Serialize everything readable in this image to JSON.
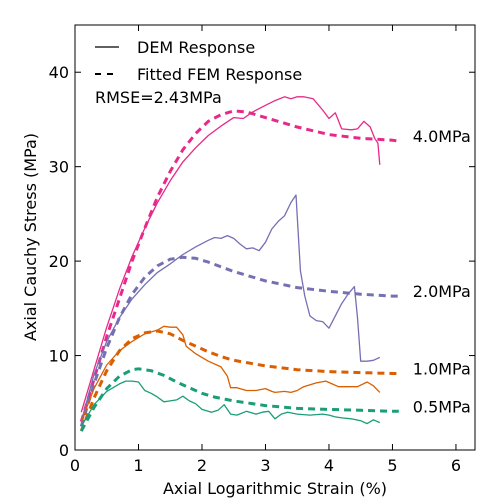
{
  "chart_data": {
    "type": "line",
    "title": "",
    "xlabel": "Axial Logarithmic Strain (%)",
    "ylabel": "Axial Cauchy Stress (MPa)",
    "xlim": [
      0,
      6.3
    ],
    "ylim": [
      0,
      45
    ],
    "x_ticks": [
      0,
      1,
      2,
      3,
      4,
      5,
      6
    ],
    "y_ticks": [
      0,
      10,
      20,
      30,
      40
    ],
    "grid": false,
    "legend": {
      "placement": "top-left",
      "entries": [
        {
          "label": "DEM Response",
          "style": "solid"
        },
        {
          "label": "Fitted FEM Response",
          "style": "dashed"
        }
      ]
    },
    "annotations": {
      "rmse": "RMSE=2.43MPa"
    },
    "series": [
      {
        "name": "4.0MPa",
        "color": "#e7298a",
        "dem": [
          [
            0.1,
            4
          ],
          [
            0.3,
            8.5
          ],
          [
            0.5,
            13
          ],
          [
            0.7,
            17
          ],
          [
            0.9,
            20.5
          ],
          [
            1.1,
            23.5
          ],
          [
            1.3,
            26.2
          ],
          [
            1.5,
            28.5
          ],
          [
            1.7,
            30.5
          ],
          [
            1.9,
            32
          ],
          [
            2.1,
            33.3
          ],
          [
            2.3,
            34.3
          ],
          [
            2.5,
            35.2
          ],
          [
            2.65,
            35.1
          ],
          [
            2.8,
            35.8
          ],
          [
            3.0,
            36.5
          ],
          [
            3.15,
            37
          ],
          [
            3.3,
            37.4
          ],
          [
            3.4,
            37.2
          ],
          [
            3.5,
            37.4
          ],
          [
            3.6,
            37.4
          ],
          [
            3.75,
            37.2
          ],
          [
            3.9,
            36
          ],
          [
            4.0,
            35.1
          ],
          [
            4.1,
            35.7
          ],
          [
            4.2,
            34
          ],
          [
            4.35,
            33.9
          ],
          [
            4.45,
            34
          ],
          [
            4.55,
            34.8
          ],
          [
            4.65,
            34.2
          ],
          [
            4.72,
            33
          ],
          [
            4.77,
            32.5
          ],
          [
            4.8,
            30.2
          ]
        ],
        "fem": [
          [
            0.1,
            3
          ],
          [
            0.3,
            7.5
          ],
          [
            0.5,
            12
          ],
          [
            0.7,
            16
          ],
          [
            0.9,
            20
          ],
          [
            1.1,
            23.5
          ],
          [
            1.3,
            26.8
          ],
          [
            1.5,
            29.5
          ],
          [
            1.7,
            31.8
          ],
          [
            1.9,
            33.5
          ],
          [
            2.1,
            34.8
          ],
          [
            2.3,
            35.5
          ],
          [
            2.5,
            35.9
          ],
          [
            2.7,
            35.8
          ],
          [
            3.0,
            35.2
          ],
          [
            3.5,
            34.2
          ],
          [
            4.0,
            33.4
          ],
          [
            4.5,
            33
          ],
          [
            5.0,
            32.8
          ],
          [
            5.1,
            32.7
          ]
        ]
      },
      {
        "name": "2.0MPa",
        "color": "#7570b3",
        "dem": [
          [
            0.1,
            3
          ],
          [
            0.3,
            8
          ],
          [
            0.5,
            11.5
          ],
          [
            0.7,
            14
          ],
          [
            0.9,
            16
          ],
          [
            1.1,
            17.5
          ],
          [
            1.3,
            18.8
          ],
          [
            1.5,
            19.7
          ],
          [
            1.7,
            20.7
          ],
          [
            1.9,
            21.5
          ],
          [
            2.1,
            22.2
          ],
          [
            2.2,
            22.5
          ],
          [
            2.3,
            22.4
          ],
          [
            2.4,
            22.7
          ],
          [
            2.5,
            22.4
          ],
          [
            2.6,
            21.8
          ],
          [
            2.7,
            21.3
          ],
          [
            2.8,
            21.4
          ],
          [
            2.9,
            21.1
          ],
          [
            3.0,
            22
          ],
          [
            3.1,
            23.4
          ],
          [
            3.2,
            24.2
          ],
          [
            3.3,
            24.8
          ],
          [
            3.4,
            26.2
          ],
          [
            3.48,
            27
          ],
          [
            3.55,
            19
          ],
          [
            3.62,
            16.3
          ],
          [
            3.7,
            14.2
          ],
          [
            3.8,
            13.7
          ],
          [
            3.9,
            13.6
          ],
          [
            4.0,
            12.9
          ],
          [
            4.1,
            14.2
          ],
          [
            4.2,
            15.5
          ],
          [
            4.3,
            16.5
          ],
          [
            4.4,
            17.3
          ],
          [
            4.45,
            14
          ],
          [
            4.5,
            9.4
          ],
          [
            4.6,
            9.4
          ],
          [
            4.7,
            9.5
          ],
          [
            4.8,
            9.8
          ]
        ],
        "fem": [
          [
            0.1,
            2.5
          ],
          [
            0.3,
            7
          ],
          [
            0.5,
            10.8
          ],
          [
            0.7,
            14
          ],
          [
            0.9,
            16.5
          ],
          [
            1.1,
            18.3
          ],
          [
            1.3,
            19.5
          ],
          [
            1.5,
            20.2
          ],
          [
            1.7,
            20.4
          ],
          [
            1.9,
            20.3
          ],
          [
            2.1,
            19.9
          ],
          [
            2.3,
            19.4
          ],
          [
            2.5,
            18.9
          ],
          [
            3.0,
            17.9
          ],
          [
            3.5,
            17.2
          ],
          [
            4.0,
            16.8
          ],
          [
            4.5,
            16.5
          ],
          [
            5.0,
            16.3
          ],
          [
            5.1,
            16.3
          ]
        ]
      },
      {
        "name": "1.0MPa",
        "color": "#d95f02",
        "dem": [
          [
            0.1,
            3
          ],
          [
            0.3,
            6.5
          ],
          [
            0.5,
            9
          ],
          [
            0.7,
            10.5
          ],
          [
            0.9,
            11.5
          ],
          [
            1.1,
            12.3
          ],
          [
            1.3,
            12.7
          ],
          [
            1.4,
            13.1
          ],
          [
            1.5,
            13
          ],
          [
            1.6,
            13
          ],
          [
            1.7,
            12.2
          ],
          [
            1.75,
            11
          ],
          [
            1.9,
            10.2
          ],
          [
            2.1,
            9.4
          ],
          [
            2.3,
            8.8
          ],
          [
            2.4,
            7.8
          ],
          [
            2.45,
            6.6
          ],
          [
            2.55,
            6.6
          ],
          [
            2.7,
            6.3
          ],
          [
            2.85,
            6.3
          ],
          [
            3.0,
            6.5
          ],
          [
            3.1,
            6.2
          ],
          [
            3.15,
            6.1
          ],
          [
            3.3,
            6.2
          ],
          [
            3.4,
            6.1
          ],
          [
            3.5,
            6.3
          ],
          [
            3.6,
            6.7
          ],
          [
            3.8,
            7.1
          ],
          [
            3.95,
            7.3
          ],
          [
            4.05,
            7
          ],
          [
            4.15,
            6.7
          ],
          [
            4.3,
            6.7
          ],
          [
            4.45,
            6.7
          ],
          [
            4.6,
            7.2
          ],
          [
            4.7,
            6.8
          ],
          [
            4.8,
            6.1
          ]
        ],
        "fem": [
          [
            0.1,
            2
          ],
          [
            0.3,
            5.5
          ],
          [
            0.5,
            8.4
          ],
          [
            0.7,
            10.5
          ],
          [
            0.9,
            11.8
          ],
          [
            1.1,
            12.4
          ],
          [
            1.3,
            12.6
          ],
          [
            1.5,
            12.3
          ],
          [
            1.7,
            11.6
          ],
          [
            1.9,
            11
          ],
          [
            2.1,
            10.4
          ],
          [
            2.3,
            9.9
          ],
          [
            2.5,
            9.5
          ],
          [
            3.0,
            8.9
          ],
          [
            3.5,
            8.5
          ],
          [
            4.0,
            8.3
          ],
          [
            4.5,
            8.2
          ],
          [
            5.0,
            8.1
          ],
          [
            5.1,
            8.1
          ]
        ]
      },
      {
        "name": "0.5MPa",
        "color": "#1b9e77",
        "dem": [
          [
            0.1,
            2.5
          ],
          [
            0.3,
            4.8
          ],
          [
            0.5,
            6.2
          ],
          [
            0.7,
            7
          ],
          [
            0.8,
            7.3
          ],
          [
            0.9,
            7.3
          ],
          [
            1.0,
            7.2
          ],
          [
            1.1,
            6.3
          ],
          [
            1.2,
            6
          ],
          [
            1.3,
            5.6
          ],
          [
            1.4,
            5.1
          ],
          [
            1.5,
            5.2
          ],
          [
            1.6,
            5.3
          ],
          [
            1.7,
            5.7
          ],
          [
            1.8,
            5.2
          ],
          [
            1.9,
            4.9
          ],
          [
            2.0,
            4.3
          ],
          [
            2.15,
            4
          ],
          [
            2.25,
            4.2
          ],
          [
            2.35,
            4.8
          ],
          [
            2.45,
            3.8
          ],
          [
            2.55,
            3.7
          ],
          [
            2.7,
            4.1
          ],
          [
            2.85,
            3.8
          ],
          [
            2.95,
            4
          ],
          [
            3.05,
            4.1
          ],
          [
            3.15,
            3.3
          ],
          [
            3.25,
            3.8
          ],
          [
            3.35,
            4
          ],
          [
            3.5,
            3.8
          ],
          [
            3.7,
            3.7
          ],
          [
            3.9,
            3.8
          ],
          [
            4.0,
            3.7
          ],
          [
            4.1,
            3.5
          ],
          [
            4.2,
            3.4
          ],
          [
            4.35,
            3.3
          ],
          [
            4.5,
            3.1
          ],
          [
            4.6,
            2.8
          ],
          [
            4.7,
            3.2
          ],
          [
            4.8,
            2.9
          ]
        ],
        "fem": [
          [
            0.1,
            2
          ],
          [
            0.3,
            4.5
          ],
          [
            0.5,
            6.5
          ],
          [
            0.7,
            7.8
          ],
          [
            0.9,
            8.5
          ],
          [
            1.0,
            8.6
          ],
          [
            1.2,
            8.4
          ],
          [
            1.4,
            7.9
          ],
          [
            1.6,
            7.2
          ],
          [
            1.8,
            6.6
          ],
          [
            2.0,
            6
          ],
          [
            2.2,
            5.6
          ],
          [
            2.5,
            5.2
          ],
          [
            3.0,
            4.7
          ],
          [
            3.5,
            4.4
          ],
          [
            4.0,
            4.3
          ],
          [
            4.5,
            4.2
          ],
          [
            5.0,
            4.1
          ],
          [
            5.1,
            4.1
          ]
        ]
      }
    ]
  }
}
